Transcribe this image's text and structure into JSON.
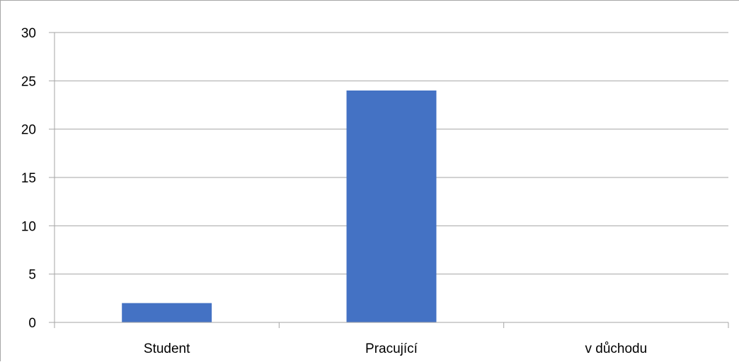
{
  "chart_data": {
    "type": "bar",
    "categories": [
      "Student",
      "Pracující",
      "v důchodu"
    ],
    "values": [
      2,
      24,
      0
    ],
    "title": "",
    "xlabel": "",
    "ylabel": "",
    "ylim": [
      0,
      30
    ],
    "yticks": [
      "0",
      "5",
      "10",
      "15",
      "20",
      "25",
      "30"
    ],
    "grid": true,
    "legend": "none",
    "colors": {
      "bar": "#4472c4",
      "grid": "#a6a6a6",
      "axis": "#a6a6a6"
    }
  }
}
